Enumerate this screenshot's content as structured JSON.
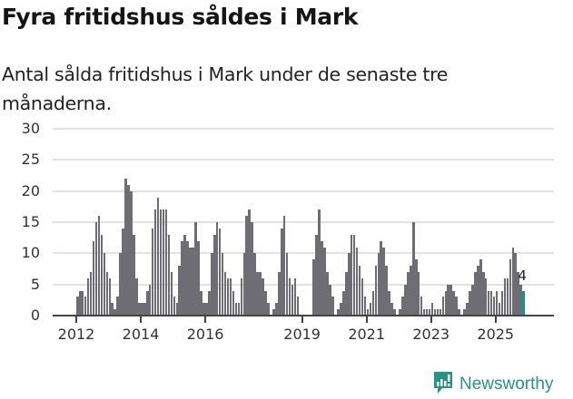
{
  "header": {
    "title": "Fyra fritidshus såldes i Mark",
    "subtitle": "Antal sålda fritidshus i Mark under de senaste tre månaderna."
  },
  "colors": {
    "bar": "#6e6d73",
    "highlight": "#11968e",
    "brand": "#2a9186",
    "grid": "#e3e3e3"
  },
  "branding": {
    "logo_text": "Newsworthy",
    "logo_icon": "bar-chart-speech-bubble-icon"
  },
  "chart_data": {
    "type": "bar",
    "title": "Fyra fritidshus såldes i Mark",
    "subtitle": "Antal sålda fritidshus i Mark under de senaste tre månaderna.",
    "xlabel": "",
    "ylabel": "",
    "ylim": [
      0,
      30
    ],
    "yticks": [
      0,
      5,
      10,
      15,
      20,
      25,
      30
    ],
    "xtick_labels": [
      "2012",
      "2014",
      "2016",
      "2019",
      "2021",
      "2023",
      "2025"
    ],
    "grid": true,
    "legend": null,
    "annotation": {
      "label": "4",
      "target": "last bar"
    },
    "frequency": "monthly (rolling 3-month total)",
    "start": "2012-01",
    "values": [
      3,
      4,
      4,
      3,
      6,
      7,
      12,
      15,
      16,
      13,
      10,
      7,
      6,
      2,
      1,
      3,
      10,
      14,
      22,
      21,
      20,
      13,
      6,
      2,
      2,
      2,
      4,
      5,
      14,
      17,
      19,
      17,
      17,
      17,
      13,
      7,
      3,
      2,
      8,
      12,
      13,
      12,
      11,
      11,
      15,
      12,
      4,
      2,
      2,
      4,
      10,
      13,
      15,
      14,
      10,
      7,
      6,
      6,
      4,
      2,
      2,
      6,
      10,
      16,
      17,
      15,
      10,
      7,
      7,
      6,
      4,
      2,
      0,
      1,
      2,
      7,
      14,
      16,
      10,
      6,
      5,
      6,
      3,
      0,
      0,
      0,
      0,
      0,
      9,
      13,
      17,
      12,
      11,
      7,
      5,
      3,
      0,
      1,
      2,
      4,
      7,
      10,
      13,
      13,
      11,
      8,
      6,
      3,
      1,
      2,
      4,
      8,
      10,
      12,
      11,
      8,
      4,
      2,
      1,
      0,
      1,
      3,
      5,
      7,
      8,
      15,
      9,
      7,
      3,
      1,
      1,
      1,
      2,
      1,
      1,
      1,
      3,
      4,
      5,
      5,
      4,
      3,
      1,
      0,
      1,
      2,
      4,
      5,
      7,
      8,
      9,
      7,
      6,
      4,
      4,
      3,
      4,
      2,
      4,
      6,
      6,
      9,
      11,
      10,
      7,
      5,
      4
    ],
    "highlight_index": 166
  }
}
